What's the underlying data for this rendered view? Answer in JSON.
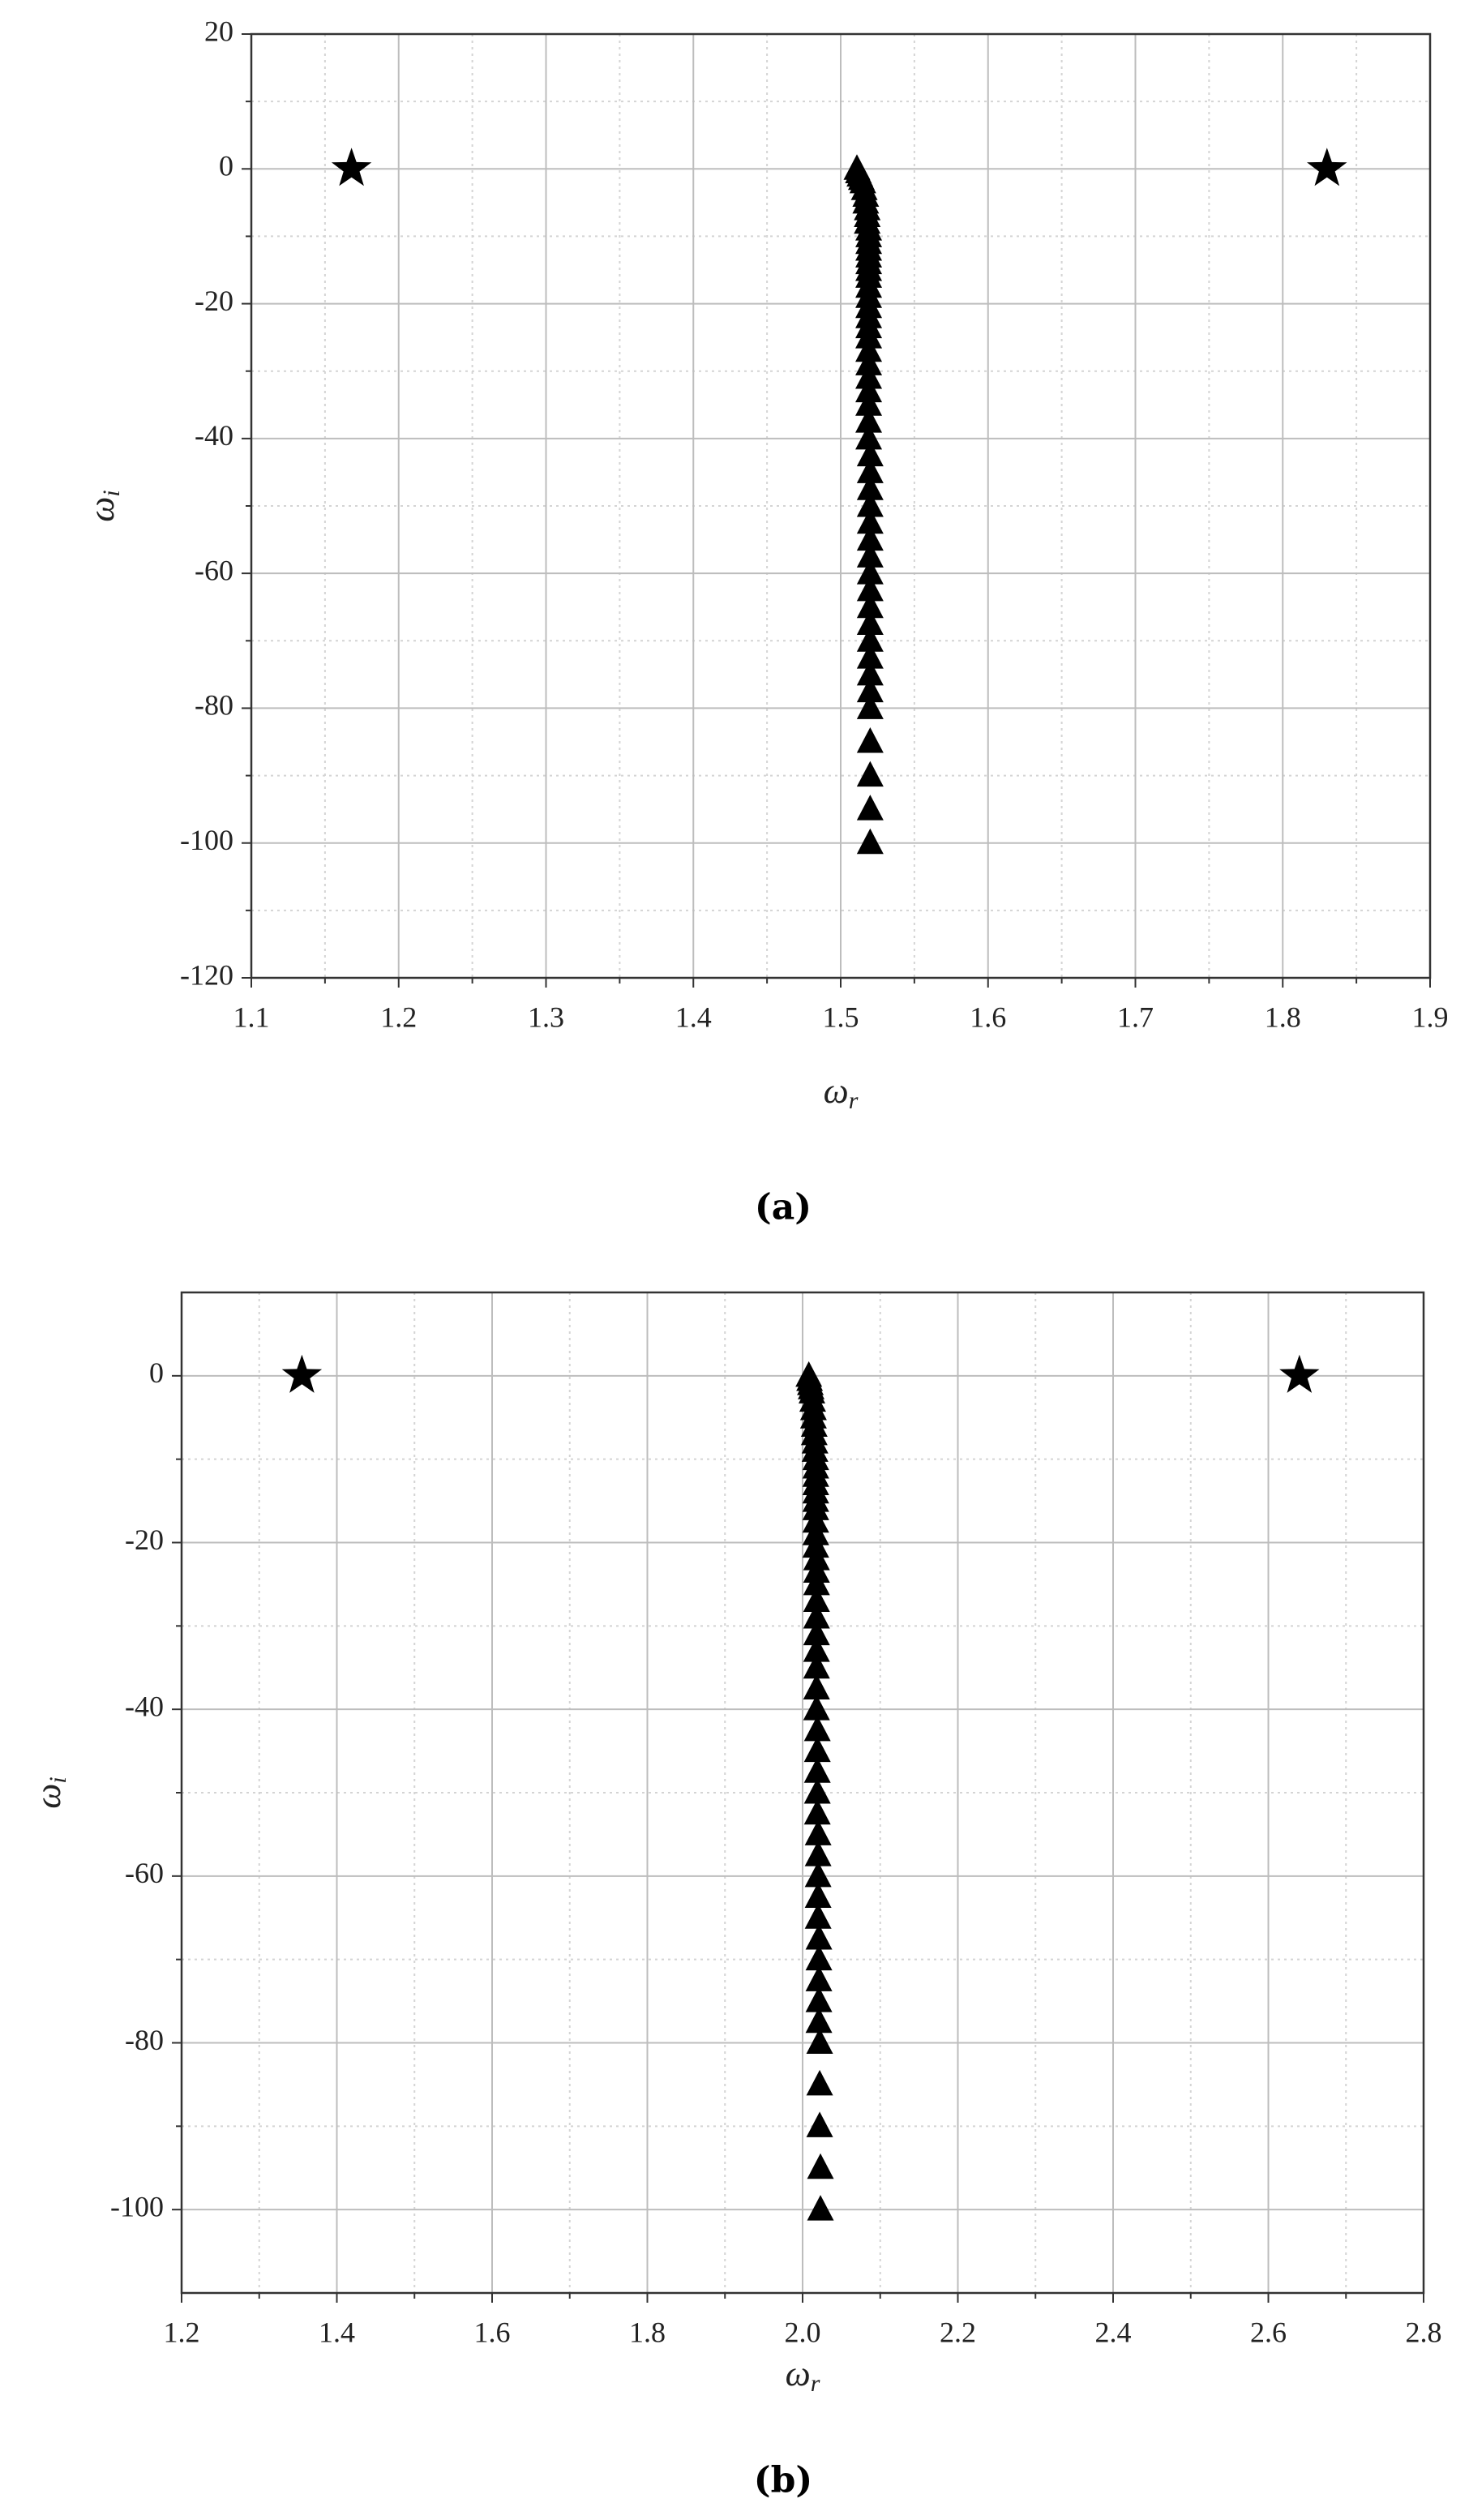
{
  "chart_data": [
    {
      "type": "scatter",
      "caption": "(a)",
      "x_label": [
        "ω",
        "r"
      ],
      "y_label": [
        "ω",
        "i"
      ],
      "xlim": [
        1.1,
        1.9
      ],
      "xticks": [
        1.1,
        1.2,
        1.3,
        1.4,
        1.5,
        1.6,
        1.7,
        1.8,
        1.9
      ],
      "xminor": [
        1.15,
        1.25,
        1.35,
        1.45,
        1.55,
        1.65,
        1.75,
        1.85
      ],
      "ylim": [
        -120,
        20
      ],
      "yticks": [
        20,
        0,
        -20,
        -40,
        -60,
        -80,
        -100,
        -120
      ],
      "yminor": [
        10,
        -10,
        -30,
        -50,
        -70,
        -90,
        -110
      ],
      "grid": true,
      "series": [
        {
          "marker": "triangle",
          "color": "#000000",
          "x": [
            1.511,
            1.512,
            1.513,
            1.514,
            1.515,
            1.516,
            1.517,
            1.517,
            1.518,
            1.518,
            1.518,
            1.519,
            1.519,
            1.519,
            1.519,
            1.519,
            1.519,
            1.519,
            1.519,
            1.519,
            1.519,
            1.519,
            1.519,
            1.519,
            1.519,
            1.519,
            1.519,
            1.519,
            1.519,
            1.519,
            1.519,
            1.519,
            1.52,
            1.52,
            1.52,
            1.52,
            1.52,
            1.52,
            1.52,
            1.52,
            1.52,
            1.52,
            1.52,
            1.52,
            1.52,
            1.52,
            1.52,
            1.52,
            1.52,
            1.52,
            1.52,
            1.52
          ],
          "values": [
            0,
            -0.5,
            -1,
            -1.5,
            -2,
            -3,
            -4,
            -5,
            -6,
            -7,
            -8,
            -9,
            -10,
            -11,
            -12,
            -13,
            -14,
            -15,
            -16,
            -17.5,
            -19,
            -20.5,
            -22,
            -23.5,
            -25,
            -27,
            -29,
            -31,
            -33,
            -35,
            -37.5,
            -40,
            -42.5,
            -45,
            -47.5,
            -50,
            -52.5,
            -55,
            -57.5,
            -60,
            -62.5,
            -65,
            -67.5,
            -70,
            -72.5,
            -75,
            -77.5,
            -80,
            -85,
            -90,
            -95,
            -100
          ]
        },
        {
          "marker": "star",
          "color": "#000000",
          "x": [
            1.168,
            1.83
          ],
          "values": [
            0,
            0
          ]
        }
      ]
    },
    {
      "type": "scatter",
      "caption": "(b)",
      "x_label": [
        "ω",
        "r"
      ],
      "y_label": [
        "ω",
        "i"
      ],
      "xlim": [
        1.2,
        2.8
      ],
      "xticks": [
        1.2,
        1.4,
        1.6,
        1.8,
        {
          "value": 2,
          "label": "2.0"
        },
        2.2,
        2.4,
        2.6,
        2.8
      ],
      "xminor": [
        1.3,
        1.5,
        1.7,
        1.9,
        2.1,
        2.3,
        2.5,
        2.7
      ],
      "ylim": [
        -110,
        10
      ],
      "yticks": [
        0,
        -20,
        -40,
        -60,
        -80,
        -100
      ],
      "yminor": [
        -10,
        -30,
        -50,
        -70,
        -90
      ],
      "grid": true,
      "series": [
        {
          "marker": "triangle",
          "color": "#000000",
          "x": [
            2.008,
            2.009,
            2.01,
            2.011,
            2.012,
            2.013,
            2.014,
            2.014,
            2.015,
            2.015,
            2.016,
            2.016,
            2.017,
            2.017,
            2.017,
            2.017,
            2.017,
            2.017,
            2.017,
            2.017,
            2.017,
            2.017,
            2.018,
            2.018,
            2.018,
            2.018,
            2.018,
            2.018,
            2.018,
            2.018,
            2.018,
            2.018,
            2.019,
            2.019,
            2.019,
            2.019,
            2.019,
            2.02,
            2.02,
            2.02,
            2.02,
            2.02,
            2.021,
            2.021,
            2.021,
            2.021,
            2.021,
            2.022,
            2.022,
            2.022,
            2.023,
            2.023
          ],
          "values": [
            0,
            -0.5,
            -1,
            -1.5,
            -2,
            -3,
            -4,
            -5,
            -6,
            -7,
            -8,
            -9,
            -10,
            -11,
            -12,
            -13,
            -14,
            -15,
            -16,
            -17.5,
            -19,
            -20.5,
            -22,
            -23.5,
            -25,
            -27,
            -29,
            -31,
            -33,
            -35,
            -37.5,
            -40,
            -42.5,
            -45,
            -47.5,
            -50,
            -52.5,
            -55,
            -57.5,
            -60,
            -62.5,
            -65,
            -67.5,
            -70,
            -72.5,
            -75,
            -77.5,
            -80,
            -85,
            -90,
            -95,
            -100
          ]
        },
        {
          "marker": "star",
          "color": "#000000",
          "x": [
            1.355,
            2.64
          ],
          "values": [
            0,
            0
          ]
        }
      ]
    }
  ]
}
